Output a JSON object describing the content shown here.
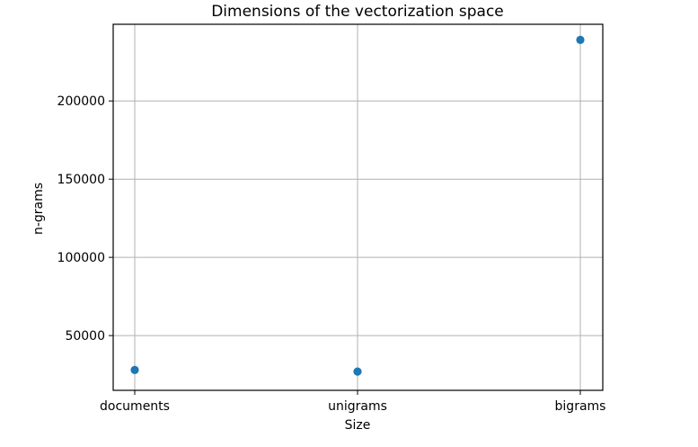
{
  "chart_data": {
    "type": "scatter",
    "title": "Dimensions of the vectorization space",
    "xlabel": "Size",
    "ylabel": "n-grams",
    "categories": [
      "documents",
      "unigrams",
      "bigrams"
    ],
    "values": [
      28000,
      27000,
      239000
    ],
    "y_ticks": [
      50000,
      100000,
      150000,
      200000
    ],
    "ylim": [
      15000,
      249000
    ],
    "grid": true,
    "point_color": "#1f77b4"
  }
}
